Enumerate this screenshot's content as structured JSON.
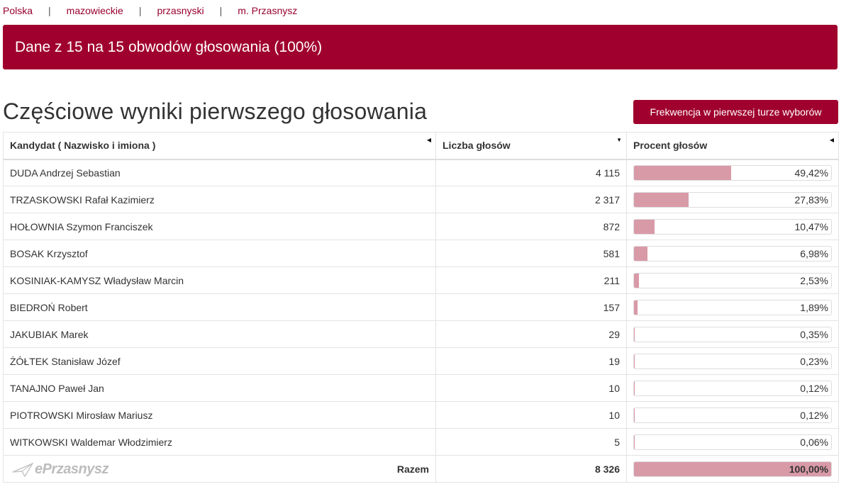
{
  "breadcrumb": {
    "items": [
      "Polska",
      "mazowieckie",
      "przasnyski",
      "m. Przasnysz"
    ],
    "separator": "|"
  },
  "banner": {
    "text": "Dane z 15 na 15 obwodów głosowania (100%)"
  },
  "page_title": "Częściowe wyniki pierwszego głosowania",
  "turnout_button": {
    "label": "Frekwencja w pierwszej turze wyborów"
  },
  "table": {
    "headers": {
      "candidate": "Kandydat ( Nazwisko i imiona )",
      "votes": "Liczba głosów",
      "percent": "Procent głosów"
    },
    "rows": [
      {
        "name": "DUDA Andrzej Sebastian",
        "votes": "4 115",
        "percent": "49,42%",
        "share": 0.4942
      },
      {
        "name": "TRZASKOWSKI Rafał Kazimierz",
        "votes": "2 317",
        "percent": "27,83%",
        "share": 0.2783
      },
      {
        "name": "HOŁOWNIA Szymon Franciszek",
        "votes": "872",
        "percent": "10,47%",
        "share": 0.1047
      },
      {
        "name": "BOSAK Krzysztof",
        "votes": "581",
        "percent": "6,98%",
        "share": 0.0698
      },
      {
        "name": "KOSINIAK-KAMYSZ Władysław Marcin",
        "votes": "211",
        "percent": "2,53%",
        "share": 0.0253
      },
      {
        "name": "BIEDROŃ Robert",
        "votes": "157",
        "percent": "1,89%",
        "share": 0.0189
      },
      {
        "name": "JAKUBIAK Marek",
        "votes": "29",
        "percent": "0,35%",
        "share": 0.0035
      },
      {
        "name": "ŻÓŁTEK Stanisław Józef",
        "votes": "19",
        "percent": "0,23%",
        "share": 0.0023
      },
      {
        "name": "TANAJNO Paweł Jan",
        "votes": "10",
        "percent": "0,12%",
        "share": 0.0012
      },
      {
        "name": "PIOTROWSKI Mirosław Mariusz",
        "votes": "10",
        "percent": "0,12%",
        "share": 0.0012
      },
      {
        "name": "WITKOWSKI Waldemar Włodzimierz",
        "votes": "5",
        "percent": "0,06%",
        "share": 0.0006
      }
    ],
    "total": {
      "label": "Razem",
      "votes": "8 326",
      "percent": "100,00%",
      "share": 1.0
    }
  },
  "watermark": {
    "text": "ePrzasnysz"
  },
  "colors": {
    "accent": "#a0002d",
    "bar_fill": "#d99aa8",
    "link": "#98002e"
  }
}
